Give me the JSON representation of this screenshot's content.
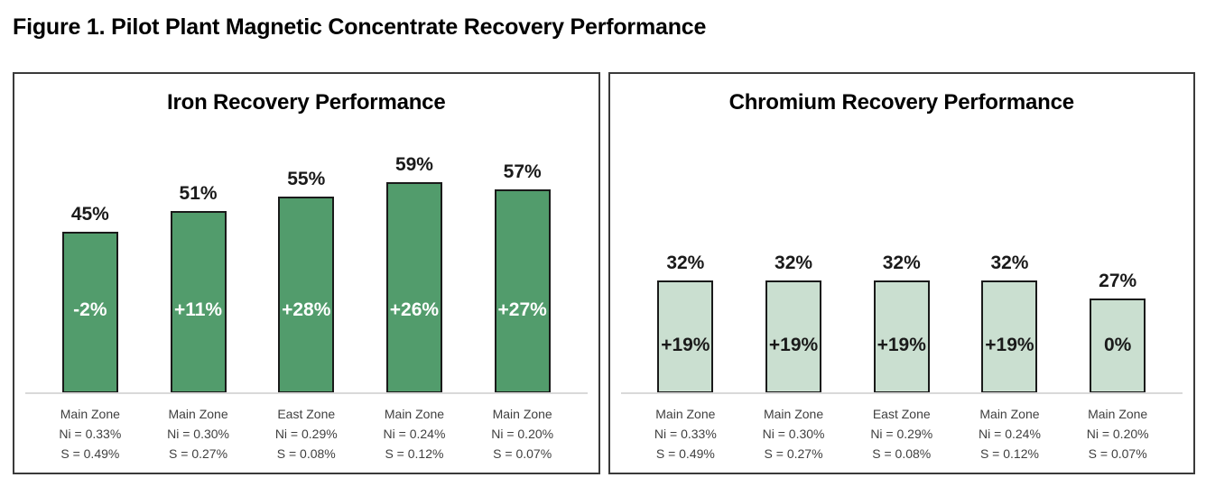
{
  "figure_title": "Figure 1. Pilot Plant Magnetic Concentrate Recovery Performance",
  "colors": {
    "iron_bar_fill": "#529c6c",
    "iron_inner_label": "#ffffff",
    "chromium_bar_fill": "#cadfd0",
    "chromium_inner_label": "#1a1a1a",
    "bar_border": "#1a1a1a",
    "axis_line": "#d9d9d9",
    "panel_border": "#3a3a3a",
    "axis_label_text": "#3f3f3f",
    "title_text": "#000000"
  },
  "chart_data": [
    {
      "type": "bar",
      "title": "Iron Recovery Performance",
      "categories": [
        [
          "Main Zone",
          "Ni = 0.33%",
          "S = 0.49%"
        ],
        [
          "Main Zone",
          "Ni = 0.30%",
          "S = 0.27%"
        ],
        [
          "East Zone",
          "Ni = 0.29%",
          "S = 0.08%"
        ],
        [
          "Main Zone",
          "Ni = 0.24%",
          "S = 0.12%"
        ],
        [
          "Main Zone",
          "Ni = 0.20%",
          "S = 0.07%"
        ]
      ],
      "values": [
        45,
        51,
        55,
        59,
        57
      ],
      "value_labels": [
        "45%",
        "51%",
        "55%",
        "59%",
        "57%"
      ],
      "inner_labels": [
        "-2%",
        "+11%",
        "+28%",
        "+26%",
        "+27%"
      ],
      "bar_fill": "#529c6c",
      "inner_label_color": "#ffffff",
      "xlabel": "",
      "ylabel": "",
      "ylim": [
        0,
        65
      ],
      "grid": false,
      "legend": false
    },
    {
      "type": "bar",
      "title": "Chromium Recovery Performance",
      "categories": [
        [
          "Main Zone",
          "Ni = 0.33%",
          "S = 0.49%"
        ],
        [
          "Main Zone",
          "Ni = 0.30%",
          "S = 0.27%"
        ],
        [
          "East Zone",
          "Ni = 0.29%",
          "S = 0.08%"
        ],
        [
          "Main Zone",
          "Ni = 0.24%",
          "S = 0.12%"
        ],
        [
          "Main Zone",
          "Ni = 0.20%",
          "S = 0.07%"
        ]
      ],
      "values": [
        32,
        32,
        32,
        32,
        27
      ],
      "value_labels": [
        "32%",
        "32%",
        "32%",
        "32%",
        "27%"
      ],
      "inner_labels": [
        "+19%",
        "+19%",
        "+19%",
        "+19%",
        "0%"
      ],
      "bar_fill": "#cadfd0",
      "inner_label_color": "#1a1a1a",
      "xlabel": "",
      "ylabel": "",
      "ylim": [
        0,
        65
      ],
      "grid": false,
      "legend": false
    }
  ]
}
